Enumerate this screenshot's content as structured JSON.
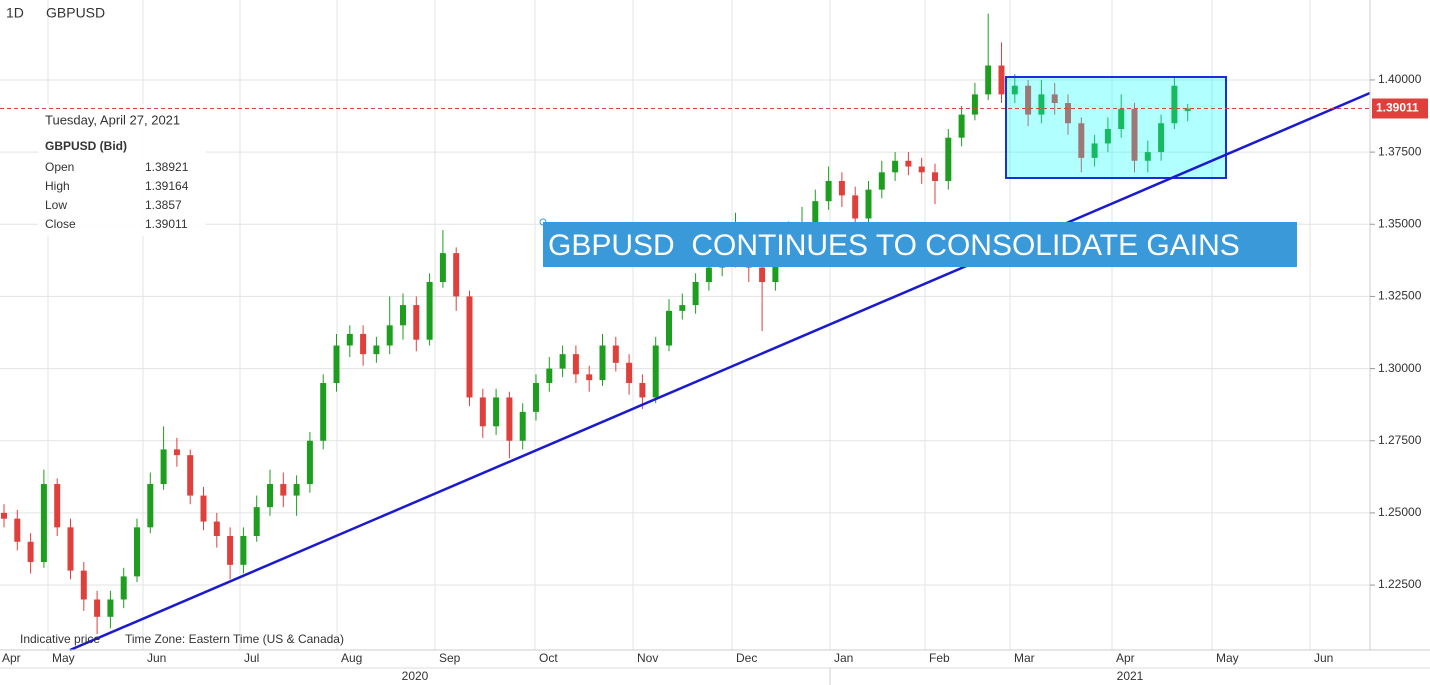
{
  "chart_data": {
    "type": "candlestick",
    "interval": "1D",
    "symbol": "GBPUSD",
    "annotation": "GBPUSD  CONTINUES TO CONSOLIDATE GAINS",
    "footer": [
      "Indicative price",
      "Time Zone: Eastern Time (US & Canada)"
    ],
    "info": {
      "date": "Tuesday, April 27, 2021",
      "title": "GBPUSD (Bid)",
      "labels": [
        "Open",
        "High",
        "Low",
        "Close"
      ]
    },
    "x_axis_labels": [
      "Apr",
      "May",
      "Jun",
      "Jul",
      "Aug",
      "Sep",
      "Oct",
      "Nov",
      "Dec",
      "Jan",
      "Feb",
      "Mar",
      "Apr",
      "May",
      "Jun"
    ],
    "x_axis_years": [
      "2020",
      "2021"
    ],
    "up_color": "#1e9e1e",
    "down_color": "#e0403c",
    "grid": true,
    "ylim": [
      1.2025,
      1.4277
    ],
    "yticks": [
      {
        "value": 1.225,
        "label": "1.22500"
      },
      {
        "value": 1.25,
        "label": "1.25000"
      },
      {
        "value": 1.275,
        "label": "1.27500"
      },
      {
        "value": 1.3,
        "label": "1.30000"
      },
      {
        "value": 1.325,
        "label": "1.32500"
      },
      {
        "value": 1.35,
        "label": "1.35000"
      },
      {
        "value": 1.375,
        "label": "1.37500"
      },
      {
        "value": 1.4,
        "label": "1.40000"
      }
    ],
    "open": [
      1.25,
      1.248,
      1.24,
      1.233,
      1.26,
      1.245,
      1.23,
      1.22,
      1.214,
      1.22,
      1.228,
      1.245,
      1.26,
      1.272,
      1.27,
      1.256,
      1.247,
      1.242,
      1.232,
      1.242,
      1.252,
      1.26,
      1.256,
      1.26,
      1.275,
      1.295,
      1.308,
      1.312,
      1.305,
      1.308,
      1.315,
      1.322,
      1.31,
      1.33,
      1.34,
      1.325,
      1.29,
      1.28,
      1.29,
      1.275,
      1.285,
      1.295,
      1.3,
      1.305,
      1.298,
      1.296,
      1.308,
      1.302,
      1.295,
      1.29,
      1.308,
      1.32,
      1.322,
      1.33,
      1.335,
      1.338,
      1.342,
      1.335,
      1.33,
      1.34,
      1.348,
      1.35,
      1.358,
      1.365,
      1.36,
      1.352,
      1.362,
      1.368,
      1.372,
      1.37,
      1.368,
      1.365,
      1.38,
      1.388,
      1.395,
      1.405,
      1.395,
      1.398,
      1.388,
      1.395,
      1.392,
      1.385,
      1.373,
      1.378,
      1.383,
      1.39,
      1.372,
      1.375,
      1.385,
      1.38921
    ],
    "high": [
      1.253,
      1.251,
      1.243,
      1.265,
      1.262,
      1.248,
      1.233,
      1.223,
      1.223,
      1.231,
      1.248,
      1.264,
      1.28,
      1.276,
      1.272,
      1.259,
      1.25,
      1.245,
      1.245,
      1.256,
      1.265,
      1.264,
      1.263,
      1.278,
      1.298,
      1.312,
      1.315,
      1.315,
      1.311,
      1.325,
      1.326,
      1.325,
      1.333,
      1.348,
      1.342,
      1.327,
      1.293,
      1.293,
      1.292,
      1.288,
      1.298,
      1.304,
      1.308,
      1.308,
      1.301,
      1.312,
      1.311,
      1.305,
      1.298,
      1.311,
      1.324,
      1.326,
      1.333,
      1.339,
      1.342,
      1.354,
      1.345,
      1.338,
      1.343,
      1.351,
      1.356,
      1.362,
      1.37,
      1.368,
      1.363,
      1.365,
      1.372,
      1.375,
      1.375,
      1.373,
      1.371,
      1.383,
      1.391,
      1.399,
      1.423,
      1.413,
      1.402,
      1.4,
      1.4,
      1.399,
      1.395,
      1.387,
      1.381,
      1.387,
      1.395,
      1.392,
      1.379,
      1.388,
      1.401,
      1.39164
    ],
    "low": [
      1.245,
      1.237,
      1.229,
      1.231,
      1.242,
      1.227,
      1.216,
      1.208,
      1.21,
      1.217,
      1.226,
      1.243,
      1.258,
      1.266,
      1.253,
      1.244,
      1.238,
      1.227,
      1.229,
      1.24,
      1.249,
      1.252,
      1.249,
      1.257,
      1.272,
      1.292,
      1.304,
      1.301,
      1.302,
      1.305,
      1.31,
      1.306,
      1.308,
      1.328,
      1.32,
      1.287,
      1.276,
      1.277,
      1.269,
      1.272,
      1.282,
      1.292,
      1.297,
      1.295,
      1.292,
      1.294,
      1.299,
      1.291,
      1.286,
      1.288,
      1.306,
      1.317,
      1.319,
      1.327,
      1.332,
      1.335,
      1.33,
      1.313,
      1.327,
      1.337,
      1.345,
      1.347,
      1.355,
      1.356,
      1.349,
      1.35,
      1.359,
      1.365,
      1.367,
      1.364,
      1.357,
      1.362,
      1.377,
      1.386,
      1.393,
      1.392,
      1.392,
      1.384,
      1.385,
      1.388,
      1.381,
      1.368,
      1.37,
      1.375,
      1.38,
      1.368,
      1.368,
      1.372,
      1.383,
      1.3857
    ],
    "close": [
      1.248,
      1.24,
      1.233,
      1.26,
      1.245,
      1.23,
      1.22,
      1.214,
      1.22,
      1.228,
      1.245,
      1.26,
      1.272,
      1.27,
      1.256,
      1.247,
      1.242,
      1.232,
      1.242,
      1.252,
      1.26,
      1.256,
      1.26,
      1.275,
      1.295,
      1.308,
      1.312,
      1.305,
      1.308,
      1.315,
      1.322,
      1.31,
      1.33,
      1.34,
      1.325,
      1.29,
      1.28,
      1.29,
      1.275,
      1.285,
      1.295,
      1.3,
      1.305,
      1.298,
      1.296,
      1.308,
      1.302,
      1.295,
      1.29,
      1.308,
      1.32,
      1.322,
      1.33,
      1.335,
      1.338,
      1.342,
      1.335,
      1.33,
      1.34,
      1.348,
      1.35,
      1.358,
      1.365,
      1.36,
      1.352,
      1.362,
      1.368,
      1.372,
      1.37,
      1.368,
      1.365,
      1.38,
      1.388,
      1.395,
      1.405,
      1.395,
      1.398,
      1.388,
      1.395,
      1.392,
      1.385,
      1.373,
      1.378,
      1.383,
      1.39,
      1.372,
      1.375,
      1.385,
      1.398,
      1.39011
    ]
  }
}
